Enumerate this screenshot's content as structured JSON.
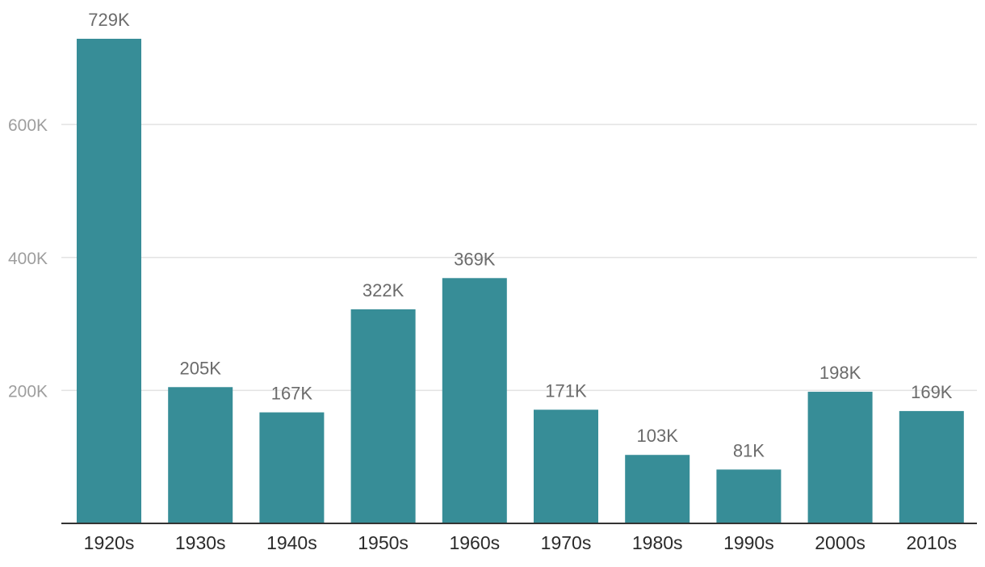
{
  "colors": {
    "bar": "#378d97"
  },
  "chart_data": {
    "type": "bar",
    "categories": [
      "1920s",
      "1930s",
      "1940s",
      "1950s",
      "1960s",
      "1970s",
      "1980s",
      "1990s",
      "2000s",
      "2010s"
    ],
    "values": [
      729000,
      205000,
      167000,
      322000,
      369000,
      171000,
      103000,
      81000,
      198000,
      169000
    ],
    "data_labels": [
      "729K",
      "205K",
      "167K",
      "322K",
      "369K",
      "171K",
      "103K",
      "81K",
      "198K",
      "169K"
    ],
    "y_ticks": [
      {
        "value": 200000,
        "label": "200K"
      },
      {
        "value": 400000,
        "label": "400K"
      },
      {
        "value": 600000,
        "label": "600K"
      }
    ],
    "ylim": [
      0,
      729000
    ],
    "grid": true,
    "legend": "none"
  }
}
